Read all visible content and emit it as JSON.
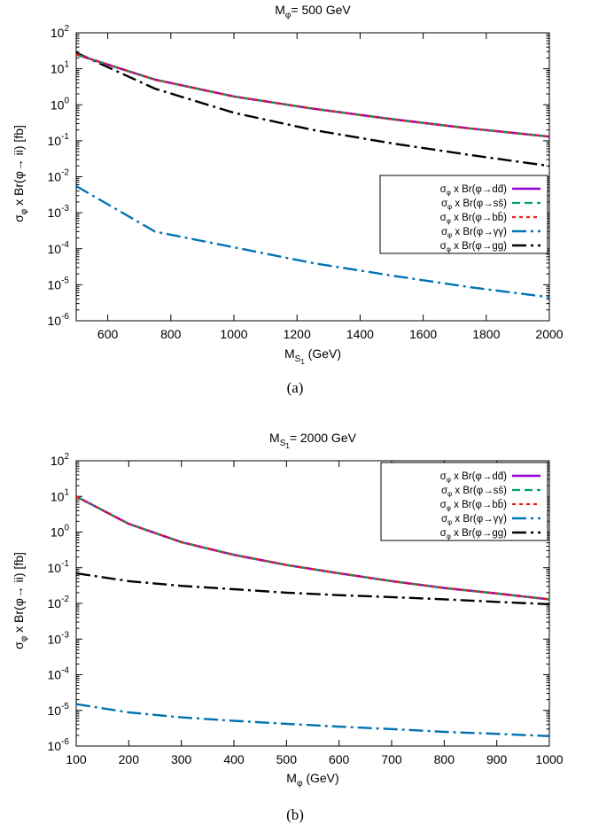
{
  "chart_data": [
    {
      "type": "line",
      "title": "M_φ= 500 GeV",
      "xlabel": "M_S1 (GeV)",
      "ylabel": "σ_φ x Br(φ→ ii) [fb]",
      "caption": "(a)",
      "xlim": [
        500,
        2000
      ],
      "ylim": [
        1e-06,
        100
      ],
      "yscale": "log",
      "grid": false,
      "legend_position": "right",
      "x_ticks": [
        "600",
        "800",
        "1000",
        "1200",
        "1400",
        "1600",
        "1800",
        "2000"
      ],
      "y_ticks": [
        "10-6",
        "10-5",
        "10-4",
        "10-3",
        "10-2",
        "10-1",
        "100",
        "101",
        "102"
      ],
      "x": [
        500,
        750,
        1000,
        1250,
        1500,
        1750,
        2000
      ],
      "series": [
        {
          "name": "σφ x Br(φ→dd̄)",
          "values": [
            25,
            5,
            1.7,
            0.78,
            0.4,
            0.22,
            0.13
          ]
        },
        {
          "name": "σφ x Br(φ→ss̄)",
          "values": [
            25,
            5,
            1.7,
            0.78,
            0.4,
            0.22,
            0.13
          ]
        },
        {
          "name": "σφ x Br(φ→bb̄)",
          "values": [
            25,
            5,
            1.7,
            0.78,
            0.4,
            0.22,
            0.13
          ]
        },
        {
          "name": "σφ x Br(φ→γγ)",
          "values": [
            0.0055,
            0.0003,
            0.00011,
            4e-05,
            1.8e-05,
            8.5e-06,
            4.5e-06
          ]
        },
        {
          "name": "σφ x Br(φ→gg)",
          "values": [
            28,
            2.8,
            0.6,
            0.2,
            0.085,
            0.04,
            0.02
          ]
        }
      ]
    },
    {
      "type": "line",
      "title": "M_S1= 2000 GeV",
      "xlabel": "M_φ (GeV)",
      "ylabel": "σ_φ x Br(φ→ ii) [fb]",
      "caption": "(b)",
      "xlim": [
        100,
        1000
      ],
      "ylim": [
        1e-06,
        100
      ],
      "yscale": "log",
      "grid": false,
      "legend_position": "top-right",
      "x_ticks": [
        "100",
        "200",
        "300",
        "400",
        "500",
        "600",
        "700",
        "800",
        "900",
        "1000"
      ],
      "y_ticks": [
        "10-6",
        "10-5",
        "10-4",
        "10-3",
        "10-2",
        "10-1",
        "100",
        "101",
        "102"
      ],
      "x": [
        100,
        200,
        300,
        400,
        500,
        600,
        700,
        800,
        900,
        1000
      ],
      "series": [
        {
          "name": "σφ x Br(φ→dd̄)",
          "values": [
            10,
            1.7,
            0.52,
            0.23,
            0.12,
            0.07,
            0.042,
            0.027,
            0.019,
            0.013
          ]
        },
        {
          "name": "σφ x Br(φ→ss̄)",
          "values": [
            10,
            1.7,
            0.52,
            0.23,
            0.12,
            0.07,
            0.042,
            0.027,
            0.019,
            0.013
          ]
        },
        {
          "name": "σφ x Br(φ→bb̄)",
          "values": [
            10,
            1.7,
            0.52,
            0.23,
            0.12,
            0.07,
            0.042,
            0.027,
            0.019,
            0.013
          ]
        },
        {
          "name": "σφ x Br(φ→γγ)",
          "values": [
            1.5e-05,
            8.8e-06,
            6.4e-06,
            5.1e-06,
            4.2e-06,
            3.5e-06,
            3e-06,
            2.5e-06,
            2.2e-06,
            1.9e-06
          ]
        },
        {
          "name": "σφ x Br(φ→gg)",
          "values": [
            0.07,
            0.042,
            0.031,
            0.025,
            0.02,
            0.017,
            0.015,
            0.013,
            0.011,
            0.0095
          ]
        }
      ]
    }
  ],
  "styles": {
    "colors": {
      "dd": "#9400d3",
      "ss": "#009e73",
      "bb": "#e51e10",
      "gamma": "#0072b2",
      "gg": "#000000"
    }
  }
}
